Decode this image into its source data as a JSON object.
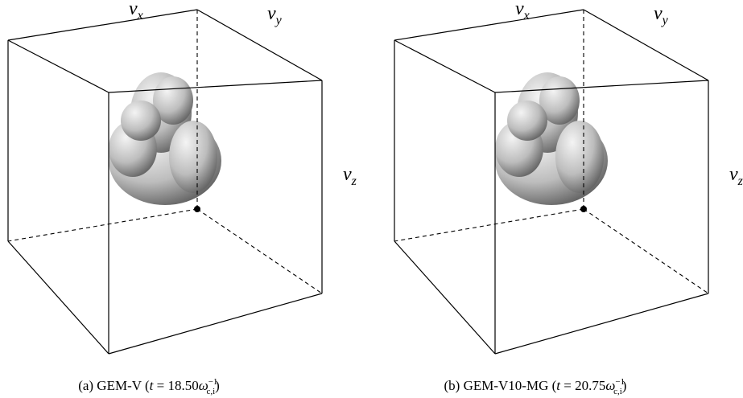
{
  "panels": [
    {
      "axes": {
        "x": {
          "symbol": "v",
          "subscript": "x"
        },
        "y": {
          "symbol": "v",
          "subscript": "y"
        },
        "z": {
          "symbol": "v",
          "subscript": "z"
        }
      },
      "caption": {
        "label": "(a) GEM-V (",
        "var": "t",
        "equals": " = 18.50",
        "omega": "ω",
        "sup": "−1",
        "sub": "c,i",
        "close": ")"
      }
    },
    {
      "axes": {
        "x": {
          "symbol": "v",
          "subscript": "x"
        },
        "y": {
          "symbol": "v",
          "subscript": "y"
        },
        "z": {
          "symbol": "v",
          "subscript": "z"
        }
      },
      "caption": {
        "label": "(b) GEM-V10-MG (",
        "var": "t",
        "equals": " = 20.75",
        "omega": "ω",
        "sup": "−1",
        "sub": "c,i",
        "close": ")"
      }
    }
  ]
}
